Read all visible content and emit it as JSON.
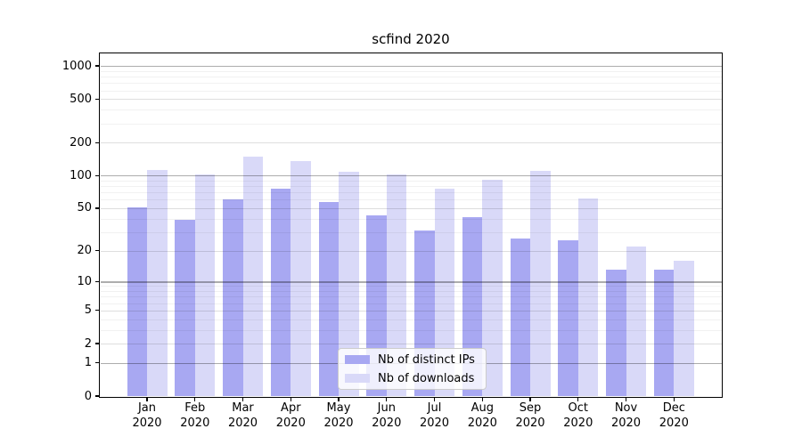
{
  "chart_data": {
    "type": "bar",
    "title": "scfind 2020",
    "x_year": "2020",
    "categories": [
      "Jan",
      "Feb",
      "Mar",
      "Apr",
      "May",
      "Jun",
      "Jul",
      "Aug",
      "Sep",
      "Oct",
      "Nov",
      "Dec"
    ],
    "series": [
      {
        "name": "Nb of distinct IPs",
        "color": "#a8a8f2",
        "values": [
          51,
          39,
          60,
          76,
          57,
          43,
          31,
          41,
          26,
          25,
          13,
          13
        ]
      },
      {
        "name": "Nb of downloads",
        "color": "#d9d9f8",
        "values": [
          113,
          102,
          150,
          137,
          108,
          102,
          76,
          91,
          110,
          61,
          22,
          16
        ]
      }
    ],
    "y_scale": "log10(1+x)",
    "y_ticks": [
      0,
      1,
      2,
      5,
      10,
      20,
      50,
      100,
      200,
      500,
      1000
    ],
    "ylim": [
      0,
      1300
    ],
    "grid": "major+sub+minor, horizontal only",
    "legend_position": "lower center"
  }
}
